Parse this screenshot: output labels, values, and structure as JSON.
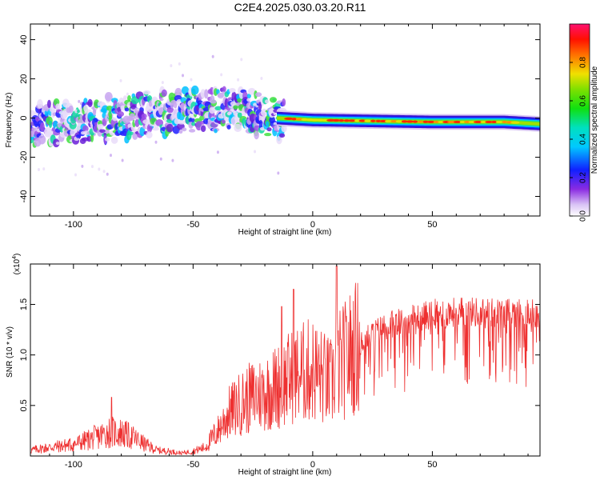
{
  "title": "C2E4.2025.030.03.20.R11",
  "chart_data": [
    {
      "type": "heatmap",
      "xlabel": "Height of straight line (km)",
      "ylabel": "Frequency (Hz)",
      "xlim": [
        -118,
        95
      ],
      "ylim": [
        -50,
        48
      ],
      "xticks": [
        -100,
        -50,
        0,
        50
      ],
      "xtick_labels": [
        "-100",
        "-50",
        "0",
        "50"
      ],
      "yticks": [
        -40,
        -20,
        0,
        20,
        40
      ],
      "ytick_labels": [
        "-40",
        "-20",
        "0",
        "20",
        "40"
      ],
      "colorbar": {
        "label": "Normalized spectral amplitude",
        "range": [
          0,
          1
        ],
        "ticks": [
          0.0,
          0.2,
          0.4,
          0.6,
          0.8
        ],
        "tick_labels": [
          "0.0",
          "0.2",
          "0.4",
          "0.6",
          "0.8"
        ]
      },
      "ridge": {
        "description_points": [
          {
            "x": -118,
            "y": -4
          },
          {
            "x": -100,
            "y": -2
          },
          {
            "x": -80,
            "y": 0
          },
          {
            "x": -60,
            "y": 3
          },
          {
            "x": -45,
            "y": 4
          },
          {
            "x": -32,
            "y": 6
          },
          {
            "x": -25,
            "y": 2
          },
          {
            "x": -15,
            "y": 0
          },
          {
            "x": 0,
            "y": -1
          },
          {
            "x": 50,
            "y": -2
          },
          {
            "x": 80,
            "y": -2
          },
          {
            "x": 95,
            "y": -3
          }
        ]
      }
    },
    {
      "type": "line",
      "xlabel": "Height of straight line (km)",
      "ylabel": "SNR (10 * v/v)",
      "scale_label": "(x10",
      "scale_exponent": "4",
      "scale_suffix": ")",
      "xlim": [
        -118,
        95
      ],
      "ylim": [
        0,
        1.9
      ],
      "xticks": [
        -100,
        -50,
        0,
        50
      ],
      "xtick_labels": [
        "-100",
        "-50",
        "0",
        "50"
      ],
      "yticks": [
        0.5,
        1.0,
        1.5
      ],
      "ytick_labels": [
        "0.5",
        "1.0",
        "1.5"
      ],
      "color": "#ee3030",
      "series": [
        {
          "x": [
            -118,
            -110,
            -100,
            -90,
            -85,
            -80,
            -75,
            -70,
            -65,
            -60,
            -55,
            -50,
            -45,
            -40,
            -35,
            -30,
            -25,
            -20,
            -15,
            -10,
            -5,
            0,
            5,
            8,
            10,
            12,
            15,
            20,
            25,
            30,
            40,
            50,
            60,
            70,
            80,
            90,
            95
          ],
          "y": [
            0.06,
            0.09,
            0.12,
            0.2,
            0.25,
            0.24,
            0.19,
            0.12,
            0.06,
            0.05,
            0.03,
            0.05,
            0.09,
            0.25,
            0.45,
            0.55,
            0.62,
            0.66,
            0.72,
            0.8,
            0.86,
            0.9,
            0.8,
            0.75,
            0.95,
            0.95,
            1.05,
            1.18,
            1.28,
            1.35,
            1.42,
            1.48,
            1.5,
            1.5,
            1.49,
            1.5,
            1.49
          ]
        }
      ],
      "peaks": [
        {
          "x": -84,
          "y": 0.58
        },
        {
          "x": -13,
          "y": 1.48
        },
        {
          "x": -8,
          "y": 1.65
        },
        {
          "x": 10,
          "y": 1.88
        }
      ]
    }
  ]
}
